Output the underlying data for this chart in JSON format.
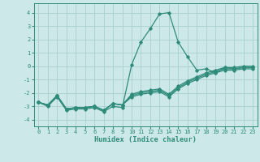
{
  "xlabel": "Humidex (Indice chaleur)",
  "x": [
    0,
    1,
    2,
    3,
    4,
    5,
    6,
    7,
    8,
    9,
    10,
    11,
    12,
    13,
    14,
    15,
    16,
    17,
    18,
    19,
    20,
    21,
    22,
    23
  ],
  "line1": [
    -2.7,
    -3.0,
    -2.3,
    -3.3,
    -3.2,
    -3.2,
    -3.1,
    -3.4,
    -3.0,
    -3.1,
    0.1,
    1.8,
    2.8,
    3.9,
    4.0,
    1.8,
    0.7,
    -0.3,
    -0.2,
    -0.5,
    -0.1,
    -0.2,
    -0.1,
    -0.1
  ],
  "line2": [
    -2.7,
    -2.9,
    -2.2,
    -3.2,
    -3.1,
    -3.1,
    -3.0,
    -3.3,
    -2.8,
    -2.9,
    -2.1,
    -1.9,
    -1.8,
    -1.7,
    -2.1,
    -1.5,
    -1.1,
    -0.8,
    -0.5,
    -0.3,
    -0.1,
    -0.1,
    0.0,
    0.0
  ],
  "line3": [
    -2.7,
    -2.9,
    -2.2,
    -3.2,
    -3.1,
    -3.1,
    -3.0,
    -3.3,
    -2.8,
    -2.9,
    -2.2,
    -2.0,
    -1.9,
    -1.8,
    -2.2,
    -1.6,
    -1.2,
    -0.9,
    -0.6,
    -0.4,
    -0.2,
    -0.2,
    -0.1,
    -0.1
  ],
  "line4": [
    -2.7,
    -2.9,
    -2.2,
    -3.2,
    -3.1,
    -3.1,
    -3.0,
    -3.3,
    -2.8,
    -2.9,
    -2.3,
    -2.1,
    -2.0,
    -1.9,
    -2.3,
    -1.7,
    -1.3,
    -1.0,
    -0.7,
    -0.5,
    -0.3,
    -0.3,
    -0.2,
    -0.2
  ],
  "line_color": "#2e8b7a",
  "bg_color": "#cce8e8",
  "grid_color": "#aad0d0",
  "ylim": [
    -4.5,
    4.7
  ],
  "xlim": [
    -0.5,
    23.5
  ],
  "yticks": [
    -4,
    -3,
    -2,
    -1,
    0,
    1,
    2,
    3,
    4
  ],
  "xticks": [
    0,
    1,
    2,
    3,
    4,
    5,
    6,
    7,
    8,
    9,
    10,
    11,
    12,
    13,
    14,
    15,
    16,
    17,
    18,
    19,
    20,
    21,
    22,
    23
  ]
}
